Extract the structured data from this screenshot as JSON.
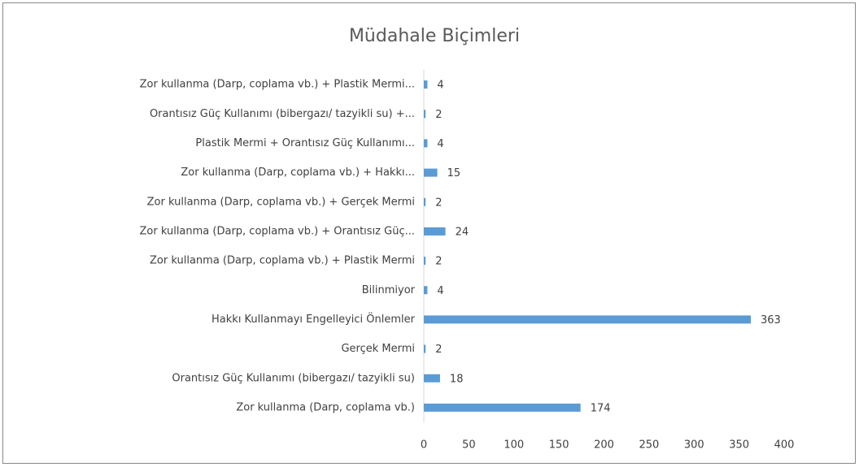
{
  "chart_data": {
    "type": "bar",
    "orientation": "horizontal",
    "title": "Müdahale Biçimleri",
    "categories": [
      "Zor kullanma (Darp, coplama vb.) + Plastik Mermi...",
      "Orantısız Güç Kullanımı (bibergazı/ tazyikli su) +...",
      "Plastik Mermi + Orantısız Güç Kullanımı...",
      "Zor kullanma (Darp, coplama vb.) + Hakkı...",
      "Zor kullanma (Darp, coplama vb.) + Gerçek Mermi",
      "Zor kullanma (Darp, coplama vb.) + Orantısız Güç...",
      "Zor kullanma (Darp, coplama vb.) + Plastik Mermi",
      "Bilinmiyor",
      "Hakkı Kullanmayı Engelleyici Önlemler",
      "Gerçek Mermi",
      "Orantısız Güç Kullanımı (bibergazı/ tazyikli su)",
      "Zor kullanma (Darp, coplama vb.)"
    ],
    "values": [
      4,
      2,
      4,
      15,
      2,
      24,
      2,
      4,
      363,
      2,
      18,
      174
    ],
    "color": "#5b9bd5",
    "xlim": [
      0,
      400
    ],
    "xticks": [
      0,
      50,
      100,
      150,
      200,
      250,
      300,
      350,
      400
    ],
    "grid": false
  }
}
